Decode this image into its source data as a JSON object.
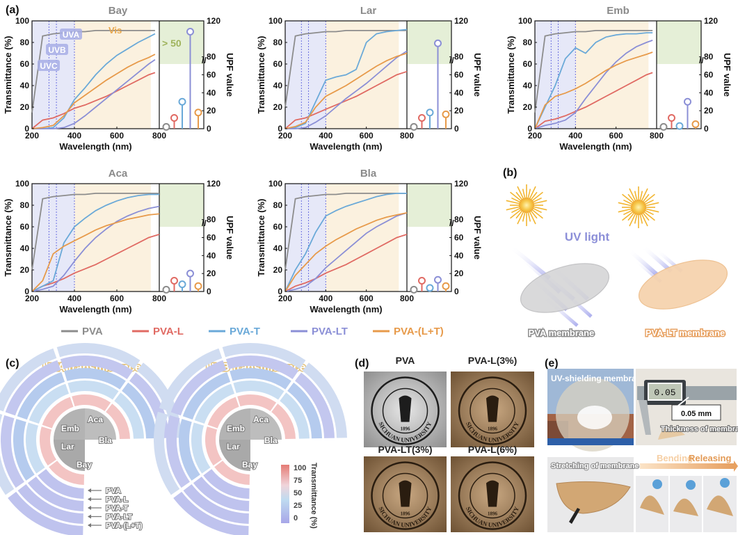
{
  "panel_labels": {
    "a": "(a)",
    "b": "(b)",
    "c": "(c)",
    "d": "(d)",
    "e": "(e)"
  },
  "colors": {
    "PVA": "#8c8c8c",
    "PVA-L": "#e06a63",
    "PVA-T": "#6aa9d8",
    "PVA-LT": "#8b8fd6",
    "PVA-(L+T)": "#e79a4a",
    "uv_band": "#e6e8f8",
    "vis_band": "#fbf1df",
    "upf_band": "#e5efd7"
  },
  "axis": {
    "xlabel": "Wavelength (nm)",
    "ylabel": "Transmittance (%)",
    "y2label": "UPF value",
    "xticks": [
      "200",
      "400",
      "600",
      "800"
    ],
    "yticks": [
      "0",
      "20",
      "40",
      "60",
      "80",
      "100"
    ],
    "y2ticks": [
      "0",
      "20",
      "40",
      "60",
      "80",
      "120"
    ]
  },
  "band_labels": {
    "uva": "UVA",
    "uvb": "UVB",
    "uvc": "UVC",
    "vis": "Vis",
    "upf": "> 50"
  },
  "legend": [
    "PVA",
    "PVA-L",
    "PVA-T",
    "PVA-LT",
    "PVA-(L+T)"
  ],
  "chart_data": [
    {
      "type": "line",
      "title": "Bay",
      "xlabel": "Wavelength (nm)",
      "ylabel": "Transmittance (%)",
      "xlim": [
        200,
        800
      ],
      "ylim": [
        0,
        100
      ],
      "x": [
        200,
        250,
        300,
        350,
        400,
        450,
        500,
        550,
        600,
        650,
        700,
        750,
        780
      ],
      "series": [
        {
          "name": "PVA",
          "values": [
            15,
            86,
            88,
            89,
            90,
            90,
            91,
            91,
            91,
            91,
            91,
            91,
            91
          ]
        },
        {
          "name": "PVA-L",
          "values": [
            0,
            8,
            10,
            14,
            19,
            22,
            26,
            30,
            35,
            40,
            45,
            50,
            52
          ]
        },
        {
          "name": "PVA-T",
          "values": [
            0,
            0,
            1,
            10,
            27,
            38,
            50,
            60,
            68,
            74,
            80,
            85,
            88
          ]
        },
        {
          "name": "PVA-LT",
          "values": [
            0,
            0,
            0,
            1,
            5,
            12,
            20,
            28,
            36,
            44,
            52,
            60,
            64
          ]
        },
        {
          "name": "PVA-(L+T)",
          "values": [
            0,
            1,
            3,
            12,
            24,
            31,
            38,
            45,
            51,
            57,
            62,
            66,
            69
          ]
        }
      ],
      "upf": [
        {
          "name": "PVA",
          "value": 2
        },
        {
          "name": "PVA-L",
          "value": 12
        },
        {
          "name": "PVA-T",
          "value": 30
        },
        {
          "name": "PVA-LT",
          "value": 108
        },
        {
          "name": "PVA-(L+T)",
          "value": 18
        }
      ]
    },
    {
      "type": "line",
      "title": "Lar",
      "xlabel": "Wavelength (nm)",
      "ylabel": "Transmittance (%)",
      "xlim": [
        200,
        800
      ],
      "ylim": [
        0,
        100
      ],
      "x": [
        200,
        250,
        300,
        350,
        400,
        450,
        500,
        550,
        600,
        650,
        700,
        750,
        800
      ],
      "series": [
        {
          "name": "PVA",
          "values": [
            20,
            86,
            88,
            89,
            90,
            90,
            91,
            91,
            91,
            91,
            91,
            91,
            91
          ]
        },
        {
          "name": "PVA-L",
          "values": [
            0,
            8,
            10,
            14,
            18,
            22,
            26,
            30,
            35,
            40,
            45,
            50,
            53
          ]
        },
        {
          "name": "PVA-T",
          "values": [
            0,
            1,
            5,
            25,
            45,
            48,
            50,
            55,
            80,
            88,
            90,
            91,
            92
          ]
        },
        {
          "name": "PVA-LT",
          "values": [
            0,
            0,
            1,
            6,
            12,
            20,
            28,
            35,
            42,
            50,
            58,
            66,
            72
          ]
        },
        {
          "name": "PVA-(L+T)",
          "values": [
            0,
            2,
            6,
            20,
            30,
            35,
            40,
            46,
            52,
            58,
            63,
            67,
            70
          ]
        }
      ],
      "upf": [
        {
          "name": "PVA",
          "value": 2
        },
        {
          "name": "PVA-L",
          "value": 12
        },
        {
          "name": "PVA-T",
          "value": 18
        },
        {
          "name": "PVA-LT",
          "value": 95
        },
        {
          "name": "PVA-(L+T)",
          "value": 16
        }
      ]
    },
    {
      "type": "line",
      "title": "Emb",
      "xlabel": "Wavelength (nm)",
      "ylabel": "Transmittance (%)",
      "xlim": [
        200,
        800
      ],
      "ylim": [
        0,
        100
      ],
      "x": [
        200,
        250,
        300,
        350,
        400,
        450,
        500,
        550,
        600,
        650,
        700,
        750,
        780
      ],
      "series": [
        {
          "name": "PVA",
          "values": [
            15,
            86,
            88,
            89,
            90,
            90,
            91,
            91,
            91,
            91,
            91,
            91,
            91
          ]
        },
        {
          "name": "PVA-L",
          "values": [
            0,
            7,
            9,
            12,
            16,
            20,
            25,
            30,
            35,
            40,
            45,
            50,
            52
          ]
        },
        {
          "name": "PVA-T",
          "values": [
            0,
            20,
            40,
            65,
            75,
            70,
            80,
            85,
            87,
            88,
            88,
            89,
            89
          ]
        },
        {
          "name": "PVA-LT",
          "values": [
            0,
            3,
            5,
            8,
            15,
            28,
            40,
            52,
            62,
            70,
            76,
            80,
            82
          ]
        },
        {
          "name": "PVA-(L+T)",
          "values": [
            0,
            22,
            30,
            33,
            37,
            42,
            48,
            54,
            59,
            63,
            66,
            69,
            71
          ]
        }
      ],
      "upf": [
        {
          "name": "PVA",
          "value": 2
        },
        {
          "name": "PVA-L",
          "value": 12
        },
        {
          "name": "PVA-T",
          "value": 3
        },
        {
          "name": "PVA-LT",
          "value": 30
        },
        {
          "name": "PVA-(L+T)",
          "value": 5
        }
      ]
    },
    {
      "type": "line",
      "title": "Aca",
      "xlabel": "Wavelength (nm)",
      "ylabel": "Transmittance (%)",
      "xlim": [
        200,
        800
      ],
      "ylim": [
        0,
        100
      ],
      "x": [
        200,
        250,
        300,
        350,
        400,
        450,
        500,
        550,
        600,
        650,
        700,
        750,
        800
      ],
      "series": [
        {
          "name": "PVA",
          "values": [
            20,
            86,
            88,
            89,
            90,
            90,
            91,
            91,
            91,
            91,
            91,
            91,
            91
          ]
        },
        {
          "name": "PVA-L",
          "values": [
            0,
            5,
            8,
            12,
            17,
            21,
            25,
            30,
            35,
            40,
            45,
            50,
            53
          ]
        },
        {
          "name": "PVA-T",
          "values": [
            0,
            5,
            10,
            45,
            60,
            68,
            75,
            80,
            84,
            87,
            89,
            90,
            90
          ]
        },
        {
          "name": "PVA-LT",
          "values": [
            0,
            2,
            5,
            15,
            28,
            40,
            50,
            58,
            65,
            70,
            74,
            77,
            79
          ]
        },
        {
          "name": "PVA-(L+T)",
          "values": [
            0,
            10,
            35,
            42,
            47,
            52,
            57,
            61,
            64,
            67,
            69,
            71,
            72
          ]
        }
      ],
      "upf": [
        {
          "name": "PVA",
          "value": 2
        },
        {
          "name": "PVA-L",
          "value": 12
        },
        {
          "name": "PVA-T",
          "value": 8
        },
        {
          "name": "PVA-LT",
          "value": 20
        },
        {
          "name": "PVA-(L+T)",
          "value": 6
        }
      ]
    },
    {
      "type": "line",
      "title": "Bla",
      "xlabel": "Wavelength (nm)",
      "ylabel": "Transmittance (%)",
      "xlim": [
        200,
        800
      ],
      "ylim": [
        0,
        100
      ],
      "x": [
        200,
        250,
        300,
        350,
        400,
        450,
        500,
        550,
        600,
        650,
        700,
        750,
        800
      ],
      "series": [
        {
          "name": "PVA",
          "values": [
            20,
            86,
            88,
            89,
            90,
            90,
            91,
            91,
            91,
            91,
            91,
            91,
            91
          ]
        },
        {
          "name": "PVA-L",
          "values": [
            0,
            5,
            8,
            12,
            17,
            21,
            25,
            30,
            35,
            40,
            45,
            50,
            53
          ]
        },
        {
          "name": "PVA-T",
          "values": [
            0,
            20,
            35,
            55,
            70,
            75,
            79,
            82,
            85,
            88,
            90,
            91,
            91
          ]
        },
        {
          "name": "PVA-LT",
          "values": [
            0,
            2,
            5,
            12,
            22,
            30,
            38,
            46,
            54,
            60,
            65,
            70,
            73
          ]
        },
        {
          "name": "PVA-(L+T)",
          "values": [
            0,
            15,
            25,
            35,
            42,
            48,
            53,
            58,
            62,
            66,
            69,
            71,
            73
          ]
        }
      ],
      "upf": [
        {
          "name": "PVA",
          "value": 2
        },
        {
          "name": "PVA-L",
          "value": 12
        },
        {
          "name": "PVA-T",
          "value": 4
        },
        {
          "name": "PVA-LT",
          "value": 13
        },
        {
          "name": "PVA-(L+T)",
          "value": 6
        }
      ]
    }
  ],
  "b": {
    "uv_light": "UV light",
    "pva_membrane": "PVA membrane",
    "pvalt_membrane": "PVA-LT membrane"
  },
  "c": {
    "uva_title": "UVA transmittance",
    "uvb_title": "UVB transmittance",
    "sectors": [
      "Aca",
      "Emb",
      "Bla",
      "Lar",
      "Bay"
    ],
    "legend_rings": [
      "PVA",
      "PVA-L",
      "PVA-T",
      "PVA-LT",
      "PVA-(L+T)"
    ],
    "colorbar_ticks": [
      "100",
      "75",
      "50",
      "25",
      "0"
    ],
    "colorbar_label": "Transmittance (%)"
  },
  "d": {
    "labels": [
      "PVA",
      "PVA-L(3%)",
      "PVA-LT(3%)",
      "PVA-L(6%)"
    ],
    "seal_text": "SICHUAN UNIVERSITY",
    "seal_year": "1896"
  },
  "e": {
    "uv_membrane": "UV-shielding membrane",
    "caliper_reading": "0.05",
    "thickness_value": "0.05 mm",
    "thickness_label": "Thickness of membrane",
    "stretch_label": "Stretching of membrane",
    "bending": "Bending",
    "releasing": "Releasing"
  }
}
